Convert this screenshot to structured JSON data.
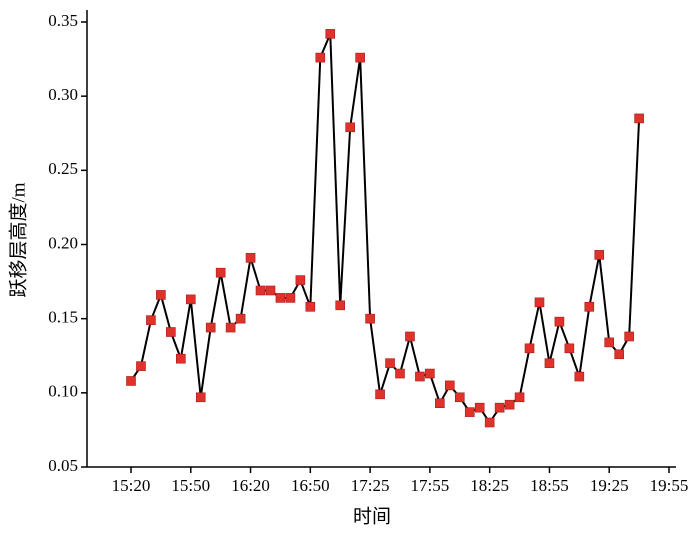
{
  "chart_data": {
    "type": "line",
    "x_label": "时间",
    "y_label": "跃移层高度/m",
    "categories": [
      "15:20",
      null,
      null,
      null,
      null,
      null,
      "15:50",
      null,
      null,
      null,
      null,
      null,
      "16:20",
      null,
      null,
      null,
      null,
      null,
      "16:50",
      null,
      null,
      null,
      null,
      null,
      "17:25",
      null,
      null,
      null,
      null,
      null,
      "17:55",
      null,
      null,
      null,
      null,
      null,
      "18:25",
      null,
      null,
      null,
      null,
      null,
      "18:55",
      null,
      null,
      null,
      null,
      null,
      "19:25",
      null,
      null,
      null,
      null,
      null,
      "19:55"
    ],
    "series": [
      {
        "color": "#e0312b",
        "line_color": "#000000",
        "values": [
          0.108,
          0.118,
          0.149,
          0.166,
          0.141,
          0.123,
          0.163,
          0.097,
          0.144,
          0.181,
          0.144,
          0.15,
          0.191,
          0.169,
          0.169,
          0.164,
          0.164,
          0.176,
          0.158,
          0.326,
          0.342,
          0.159,
          0.279,
          0.326,
          0.15,
          0.099,
          0.12,
          0.113,
          0.138,
          0.111,
          0.113,
          0.093,
          0.105,
          0.097,
          0.087,
          0.09,
          0.08,
          0.09,
          0.092,
          0.097,
          0.13,
          0.161,
          0.12,
          0.148,
          0.13,
          0.111,
          0.158,
          0.193,
          0.134,
          0.126,
          0.138,
          0.285,
          null,
          null,
          null
        ]
      }
    ],
    "ylim": [
      0.05,
      0.35
    ],
    "yticks": [
      0.05,
      {
        "value": 0.1,
        "label": "0.10"
      },
      0.15,
      {
        "value": 0.2,
        "label": "0.20"
      },
      0.25,
      {
        "value": 0.3,
        "label": "0.30"
      },
      0.35
    ]
  }
}
